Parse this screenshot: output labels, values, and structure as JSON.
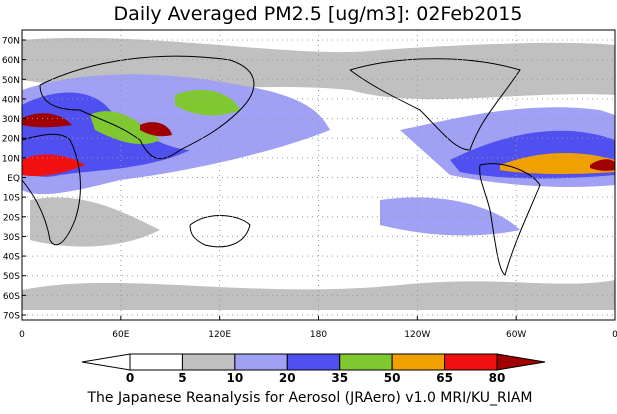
{
  "title": "Daily Averaged PM2.5 [ug/m3]: 02Feb2015",
  "map": {
    "lat_labels": [
      "70N",
      "60N",
      "50N",
      "40N",
      "30N",
      "20N",
      "10N",
      "EQ",
      "10S",
      "20S",
      "30S",
      "40S",
      "50S",
      "60S",
      "70S"
    ],
    "lon_labels": [
      "0",
      "60E",
      "120E",
      "180",
      "120W",
      "60W",
      "0"
    ]
  },
  "colorbar": {
    "levels": [
      0,
      5,
      10,
      20,
      35,
      50,
      65,
      80
    ],
    "colors": [
      "#ffffff",
      "#ffffff",
      "#c0c0c0",
      "#a0a0f5",
      "#5050f0",
      "#80c830",
      "#f0a000",
      "#f01010",
      "#a00000"
    ]
  },
  "footer": "The Japanese Reanalysis for Aerosol (JRAero) v1.0 MRI/KU_RIAM"
}
